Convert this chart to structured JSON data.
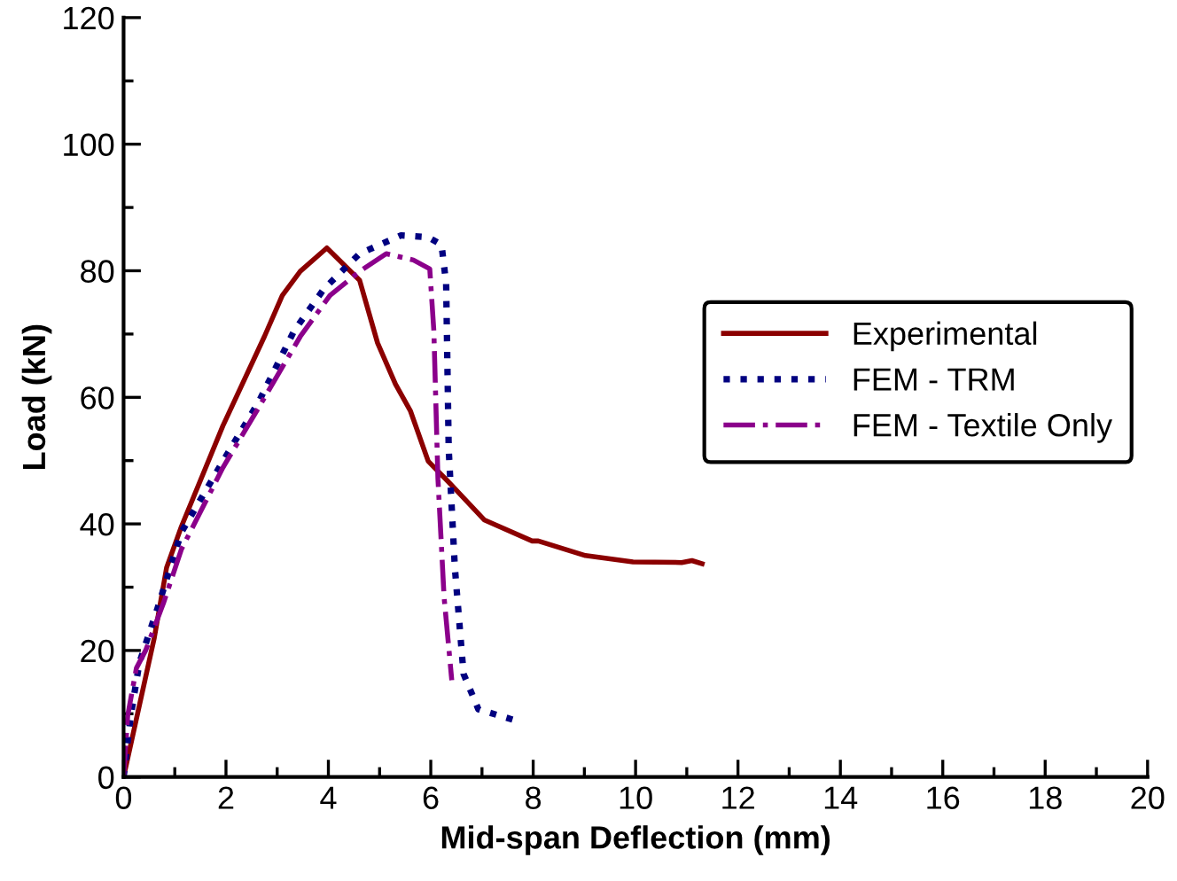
{
  "chart_data": {
    "type": "line",
    "xlabel": "Mid-span Deflection (mm)",
    "ylabel": "Load (kN)",
    "xlim": [
      0,
      20
    ],
    "ylim": [
      0,
      120
    ],
    "xticks": [
      0,
      2,
      4,
      6,
      8,
      10,
      12,
      14,
      16,
      18,
      20
    ],
    "yticks": [
      0,
      20,
      40,
      60,
      80,
      100,
      120
    ],
    "grid": false,
    "legend": "right",
    "marker": "none",
    "series": [
      {
        "name": "Experimental",
        "color": "#8b0000",
        "line_style": "solid",
        "x": [
          0,
          0.3,
          0.6,
          0.84,
          1.13,
          1.94,
          2.75,
          3.1,
          3.45,
          3.97,
          4.26,
          4.61,
          4.96,
          5.31,
          5.6,
          5.95,
          6.35,
          7.05,
          7.98,
          8.1,
          9.02,
          9.95,
          10.9,
          11.1,
          11.3
        ],
        "values": [
          0,
          11,
          22,
          33.1,
          39.6,
          55.5,
          69.6,
          76.1,
          79.9,
          83.6,
          81.3,
          78.5,
          68.6,
          62.1,
          57.9,
          49.9,
          46.6,
          40.6,
          37.3,
          37.3,
          35.0,
          34.0,
          33.9,
          34.2,
          33.7
        ]
      },
      {
        "name": "FEM - TRM",
        "color": "#000080",
        "line_style": "dotted",
        "x": [
          0,
          0.14,
          0.31,
          0.66,
          1.13,
          1.94,
          2.64,
          3.33,
          3.91,
          4.61,
          5.42,
          5.95,
          6.21,
          6.3,
          6.35,
          6.47,
          6.64,
          6.93,
          7.63
        ],
        "values": [
          0,
          9.7,
          18.1,
          26.6,
          38.7,
          49.9,
          59.3,
          70.5,
          77.1,
          82.7,
          85.6,
          85.3,
          84.1,
          78,
          51.8,
          33.1,
          16.3,
          10.7,
          9.0
        ]
      },
      {
        "name": "FEM - Textile Only",
        "color": "#8b008b",
        "line_style": "dashdot",
        "x": [
          0,
          0.08,
          0.25,
          0.43,
          0.78,
          1.13,
          1.94,
          2.64,
          3.45,
          4.03,
          4.61,
          5.13,
          5.66,
          5.98,
          6.06,
          6.14,
          6.26,
          6.41
        ],
        "values": [
          0,
          9.7,
          17.2,
          20,
          27.5,
          36,
          48.9,
          58.4,
          69.6,
          76.1,
          79.9,
          82.7,
          81.7,
          80.3,
          70.5,
          47.1,
          28.4,
          15.3
        ]
      }
    ]
  }
}
